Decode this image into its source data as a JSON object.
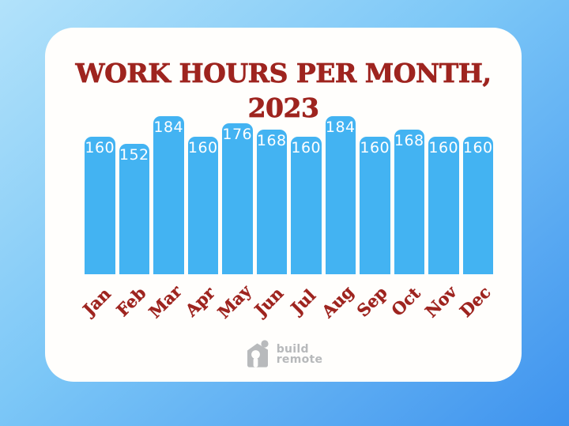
{
  "page": {
    "title": "WORK HOURS PER MONTH, 2023"
  },
  "chart_data": {
    "type": "bar",
    "title": "WORK HOURS PER MONTH, 2023",
    "categories": [
      "Jan",
      "Feb",
      "Mar",
      "Apr",
      "May",
      "Jun",
      "Jul",
      "Aug",
      "Sep",
      "Oct",
      "Nov",
      "Dec"
    ],
    "values": [
      160,
      152,
      184,
      160,
      176,
      168,
      160,
      184,
      160,
      168,
      160,
      160
    ],
    "xlabel": "",
    "ylabel": "",
    "ylim": [
      0,
      184
    ],
    "grid": false,
    "legend": false,
    "value_labels_shown": true,
    "bar_color": "#43b3f2",
    "value_label_color": "#ffffff",
    "category_label_color": "#9e241f"
  },
  "footer": {
    "logo_icon": "buildremote-house-person-icon",
    "brand_line1": "build",
    "brand_line2": "remote",
    "brand_color": "#b7b9bb"
  },
  "colors": {
    "background_gradient_start": "#b2e2fa",
    "background_gradient_end": "#3f93ee",
    "card_background": "#fffefc",
    "title_color": "#9e241f"
  }
}
